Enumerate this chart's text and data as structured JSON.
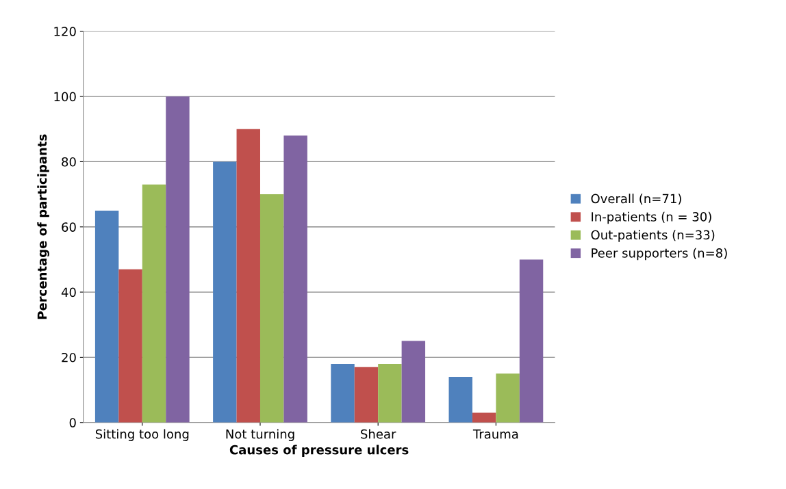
{
  "chart_data": {
    "type": "bar",
    "xlabel": "Causes of pressure ulcers",
    "ylabel": "Percentage of participants",
    "categories": [
      "Sitting too long",
      "Not turning",
      "Shear",
      "Trauma"
    ],
    "series": [
      {
        "name": "Overall (n=71)",
        "color": "#4f81bd",
        "values": [
          65,
          80,
          18,
          14
        ]
      },
      {
        "name": "In-patients (n = 30)",
        "color": "#c0504d",
        "values": [
          47,
          90,
          17,
          3
        ]
      },
      {
        "name": "Out-patients (n=33)",
        "color": "#9bbb59",
        "values": [
          73,
          70,
          18,
          15
        ]
      },
      {
        "name": "Peer supporters (n=8)",
        "color": "#8064a2",
        "values": [
          100,
          88,
          25,
          50
        ]
      }
    ],
    "ylim": [
      0,
      120
    ],
    "yticks": [
      0,
      20,
      40,
      60,
      80,
      100,
      120
    ],
    "grid": "y",
    "legend": "right"
  }
}
